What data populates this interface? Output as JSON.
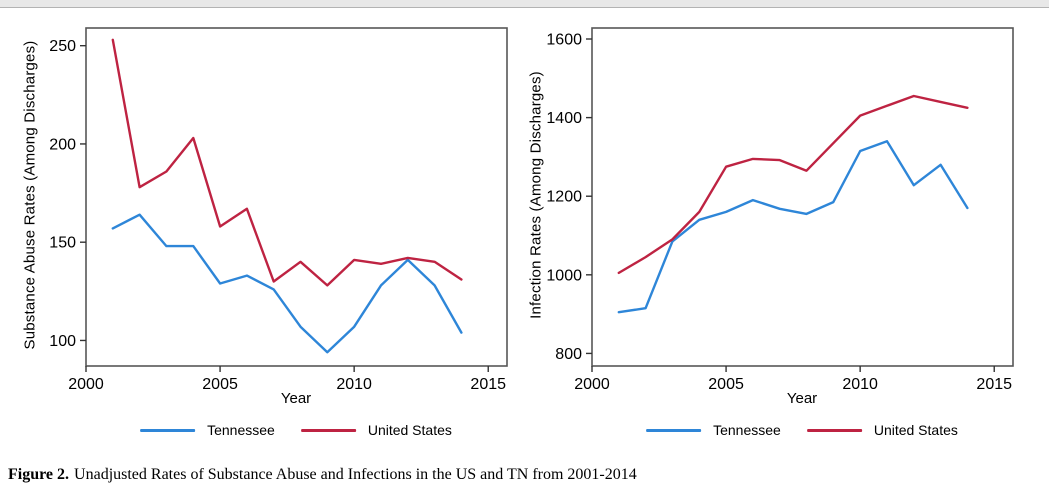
{
  "caption": {
    "prefix": "Figure 2.",
    "text": "Unadjusted Rates of Substance Abuse and Infections in the US and TN from 2001-2014"
  },
  "colors": {
    "tennessee": "#2E86D8",
    "united_states": "#BE2342",
    "frame": "#565656",
    "tick": "#333333"
  },
  "legend": {
    "tennessee": "Tennessee",
    "united_states": "United States"
  },
  "chart_data": [
    {
      "type": "line",
      "title": "",
      "xlabel": "Year",
      "ylabel": "Substance Abuse Rates (Among Discharges)",
      "x": [
        2001,
        2002,
        2003,
        2004,
        2005,
        2006,
        2007,
        2008,
        2009,
        2010,
        2011,
        2012,
        2013,
        2014
      ],
      "xlim": [
        2000,
        2015.7
      ],
      "xticks": [
        2000,
        2005,
        2010,
        2015
      ],
      "ylim": [
        87,
        259
      ],
      "yticks": [
        100,
        150,
        200,
        250
      ],
      "grid": false,
      "legend_position": "bottom",
      "series": [
        {
          "name": "Tennessee",
          "color": "#2E86D8",
          "values": [
            157,
            164,
            148,
            148,
            129,
            133,
            126,
            107,
            94,
            107,
            128,
            141,
            128,
            104
          ]
        },
        {
          "name": "United States",
          "color": "#BE2342",
          "values": [
            253,
            178,
            186,
            203,
            158,
            167,
            130,
            140,
            128,
            141,
            139,
            142,
            140,
            131
          ]
        }
      ]
    },
    {
      "type": "line",
      "title": "",
      "xlabel": "Year",
      "ylabel": "Infection Rates (Among Discharges)",
      "x": [
        2001,
        2002,
        2003,
        2004,
        2005,
        2006,
        2007,
        2008,
        2009,
        2010,
        2011,
        2012,
        2013,
        2014
      ],
      "xlim": [
        2000,
        2015.7
      ],
      "xticks": [
        2000,
        2005,
        2010,
        2015
      ],
      "ylim": [
        768,
        1628
      ],
      "yticks": [
        800,
        1000,
        1200,
        1400,
        1600
      ],
      "grid": false,
      "legend_position": "bottom",
      "series": [
        {
          "name": "Tennessee",
          "color": "#2E86D8",
          "values": [
            905,
            915,
            1085,
            1140,
            1160,
            1190,
            1168,
            1155,
            1185,
            1315,
            1340,
            1228,
            1280,
            1170
          ]
        },
        {
          "name": "United States",
          "color": "#BE2342",
          "values": [
            1005,
            1045,
            1090,
            1160,
            1275,
            1295,
            1292,
            1265,
            1335,
            1405,
            1430,
            1455,
            1440,
            1425
          ]
        }
      ]
    }
  ]
}
